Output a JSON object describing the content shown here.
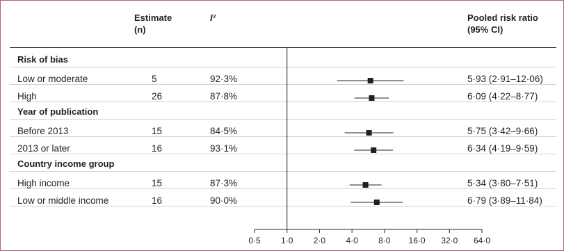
{
  "header": {
    "estimate": "Estimate",
    "n": "(n)",
    "i2": "I²",
    "ratio": "Pooled risk ratio",
    "ci": "(95% CI)"
  },
  "groups": [
    {
      "label": "Risk of bias",
      "rows": [
        {
          "label": "Low or moderate",
          "n": "5",
          "i2": "92·3%",
          "ci_text": "5·93 (2·91–12·06)"
        },
        {
          "label": "High",
          "n": "26",
          "i2": "87·8%",
          "ci_text": "6·09 (4·22–8·77)"
        }
      ]
    },
    {
      "label": "Year of publication",
      "rows": [
        {
          "label": "Before 2013",
          "n": "15",
          "i2": "84·5%",
          "ci_text": "5·75 (3·42–9·66)"
        },
        {
          "label": "2013 or later",
          "n": "16",
          "i2": "93·1%",
          "ci_text": "6·34 (4·19–9·59)"
        }
      ]
    },
    {
      "label": "Country income group",
      "rows": [
        {
          "label": "High income",
          "n": "15",
          "i2": "87·3%",
          "ci_text": "5·34 (3·80–7·51)"
        },
        {
          "label": "Low or middle income",
          "n": "16",
          "i2": "90·0%",
          "ci_text": "6·79 (3·89–11·84)"
        }
      ]
    }
  ],
  "chart_data": {
    "type": "scatter",
    "x_scale": "log2",
    "xlim": [
      0.5,
      64
    ],
    "reference_line": 1.0,
    "ticks": [
      {
        "value": 0.5,
        "label": "0·5"
      },
      {
        "value": 1,
        "label": "1·0"
      },
      {
        "value": 2,
        "label": "2·0"
      },
      {
        "value": 4,
        "label": "4·0"
      },
      {
        "value": 8,
        "label": "8·0"
      },
      {
        "value": 16,
        "label": "16·0"
      },
      {
        "value": 32,
        "label": "32·0"
      },
      {
        "value": 64,
        "label": "64·0"
      }
    ],
    "points": [
      {
        "estimate": 5.93,
        "lower": 2.91,
        "upper": 12.06
      },
      {
        "estimate": 6.09,
        "lower": 4.22,
        "upper": 8.77
      },
      {
        "estimate": 5.75,
        "lower": 3.42,
        "upper": 9.66
      },
      {
        "estimate": 6.34,
        "lower": 4.19,
        "upper": 9.59
      },
      {
        "estimate": 5.34,
        "lower": 3.8,
        "upper": 7.51
      },
      {
        "estimate": 6.79,
        "lower": 3.89,
        "upper": 11.84
      }
    ],
    "colors": {
      "marker": "#231f20",
      "line": "#231f20",
      "frame": "#b45c7e"
    }
  }
}
